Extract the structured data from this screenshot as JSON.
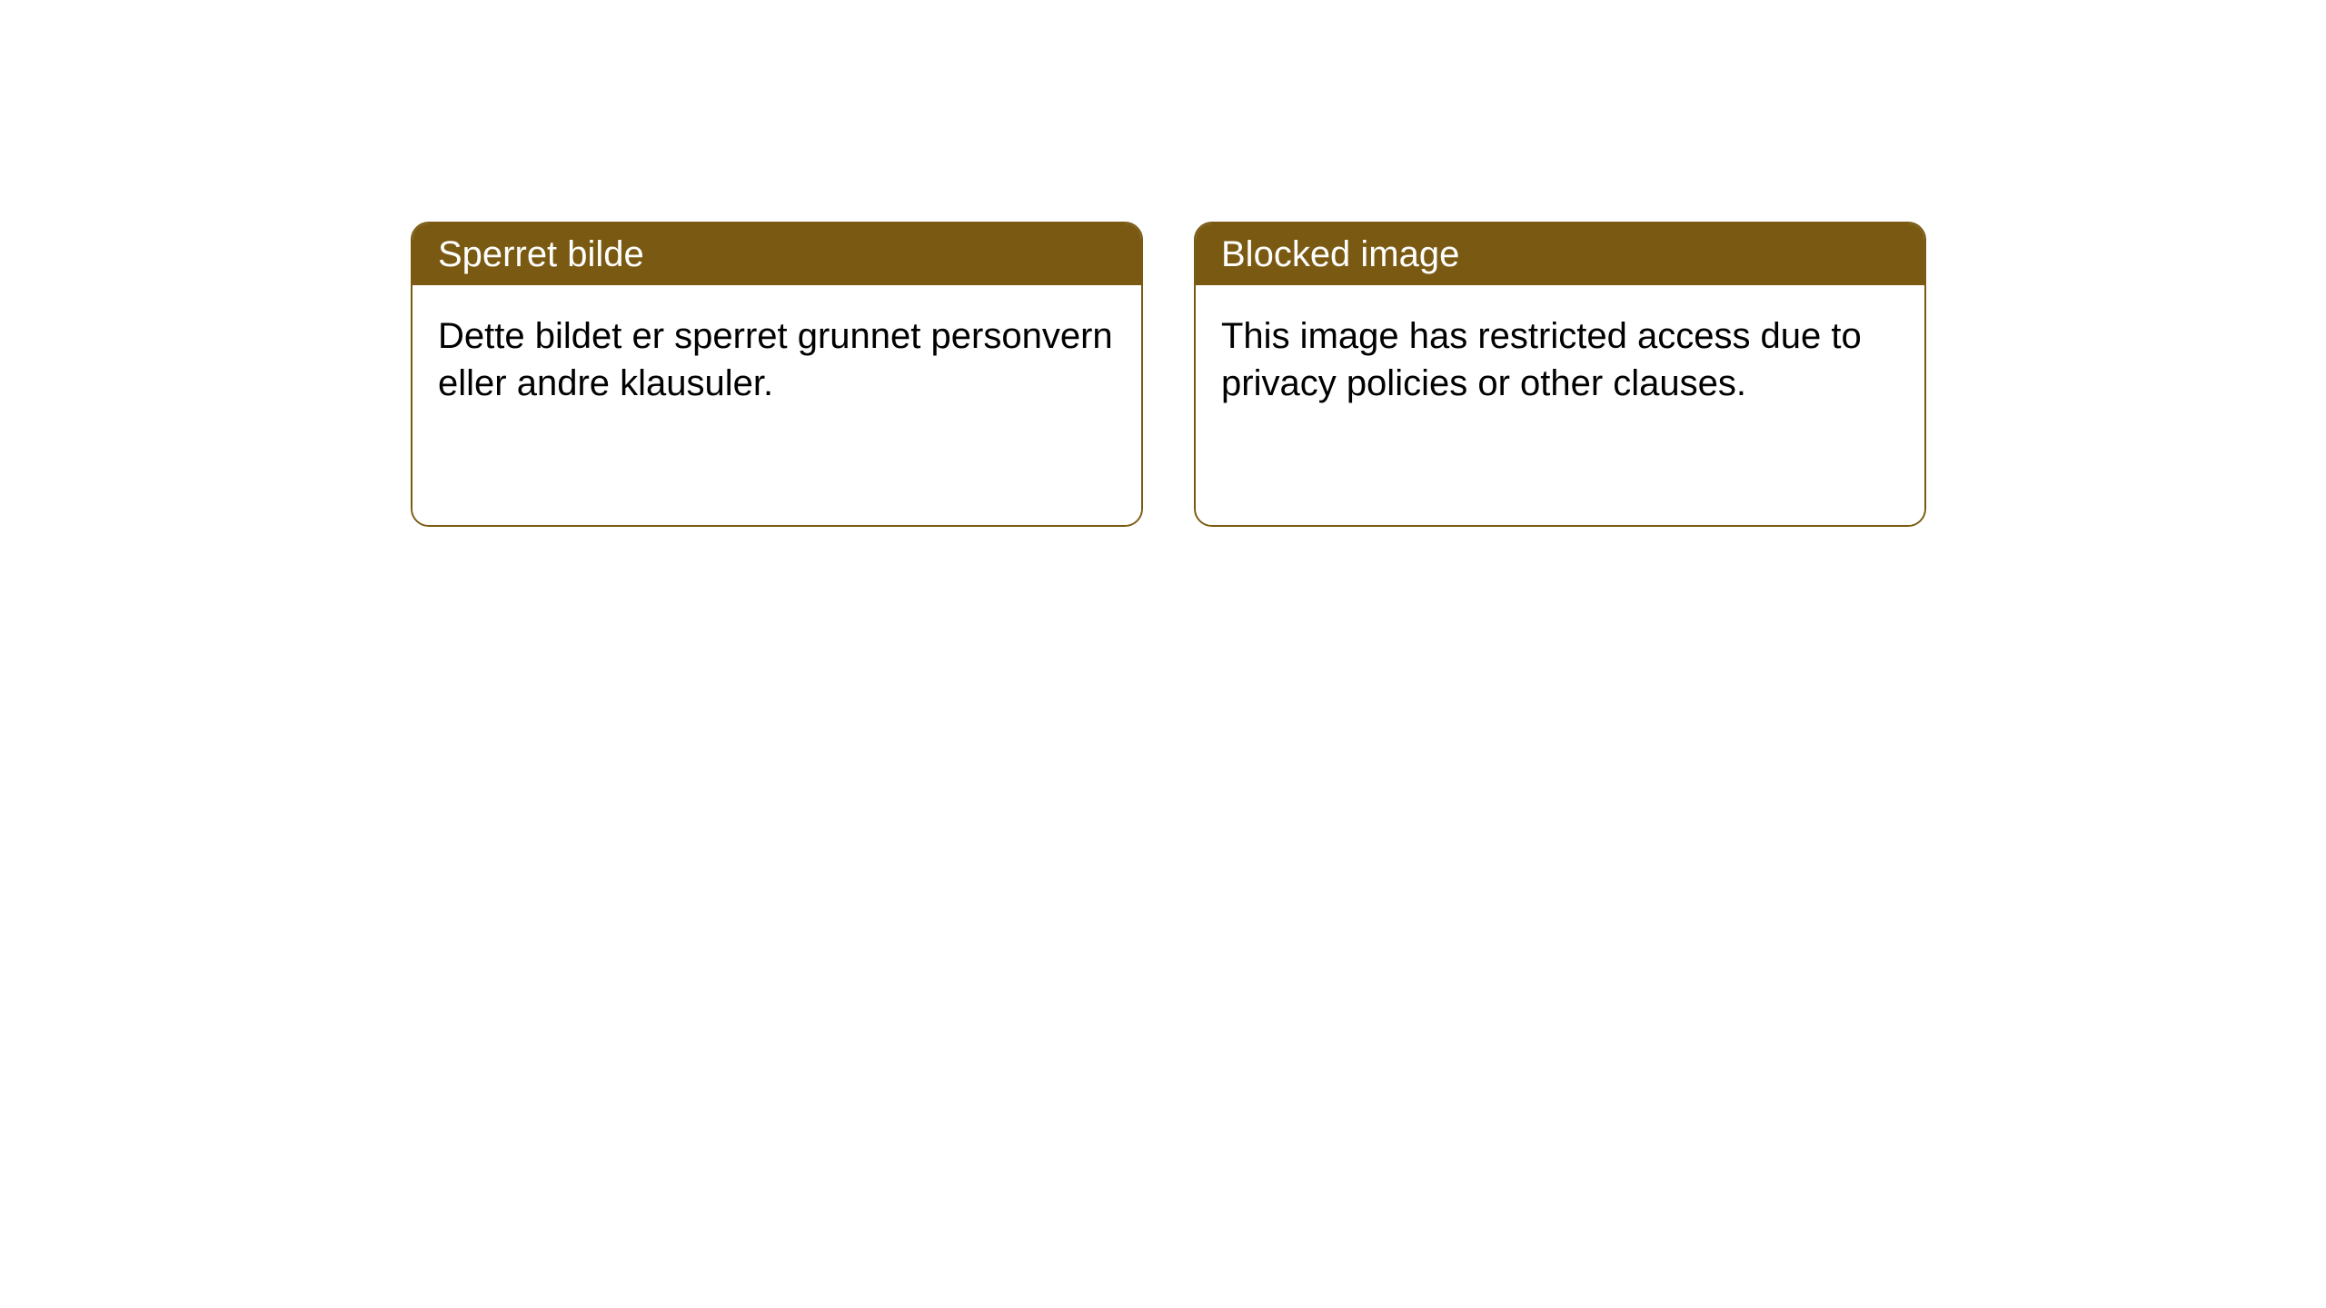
{
  "styling": {
    "header_background": "#7a5a13",
    "header_text_color": "#ffffff",
    "border_color": "#7a5a13",
    "border_width": 2,
    "border_radius": 20,
    "body_text_color": "#000000",
    "body_background": "#ffffff",
    "page_background": "#ffffff",
    "header_fontsize": 40,
    "body_fontsize": 40
  },
  "cards": [
    {
      "title": "Sperret bilde",
      "body": "Dette bildet er sperret grunnet personvern eller andre klausuler."
    },
    {
      "title": "Blocked image",
      "body": "This image has restricted access due to privacy policies or other clauses."
    }
  ]
}
